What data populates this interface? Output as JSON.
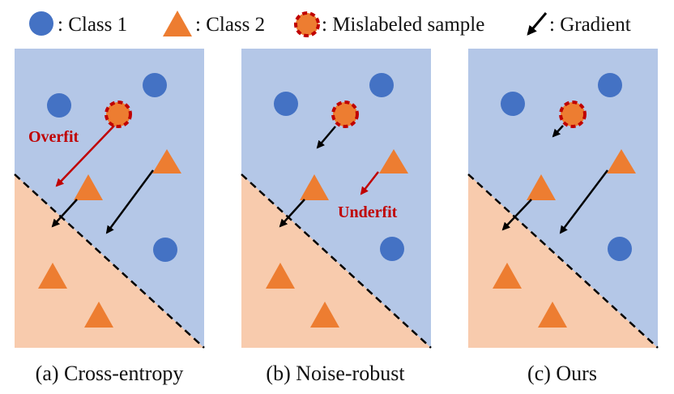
{
  "colors": {
    "blue_region": "#b4c7e7",
    "orange_region": "#f8cbad",
    "class1": "#4472c4",
    "class2": "#ed7d31",
    "mislabel_ring": "#c00000",
    "arrow_black": "#000000",
    "arrow_red": "#c00000"
  },
  "legend": {
    "class1": ": Class 1",
    "class2": ": Class 2",
    "mislabeled": ": Mislabeled sample",
    "gradient": ": Gradient"
  },
  "icons": {
    "class1": "blue-circle-icon",
    "class2": "orange-triangle-icon",
    "mislabeled": "orange-circle-red-dashed-ring-icon",
    "gradient": "black-diagonal-arrow-icon"
  },
  "panels": [
    {
      "caption": "(a) Cross-entropy",
      "annotation": "Overfit"
    },
    {
      "caption": "(b) Noise-robust",
      "annotation": "Underfit"
    },
    {
      "caption": "(c) Ours",
      "annotation": ""
    }
  ]
}
